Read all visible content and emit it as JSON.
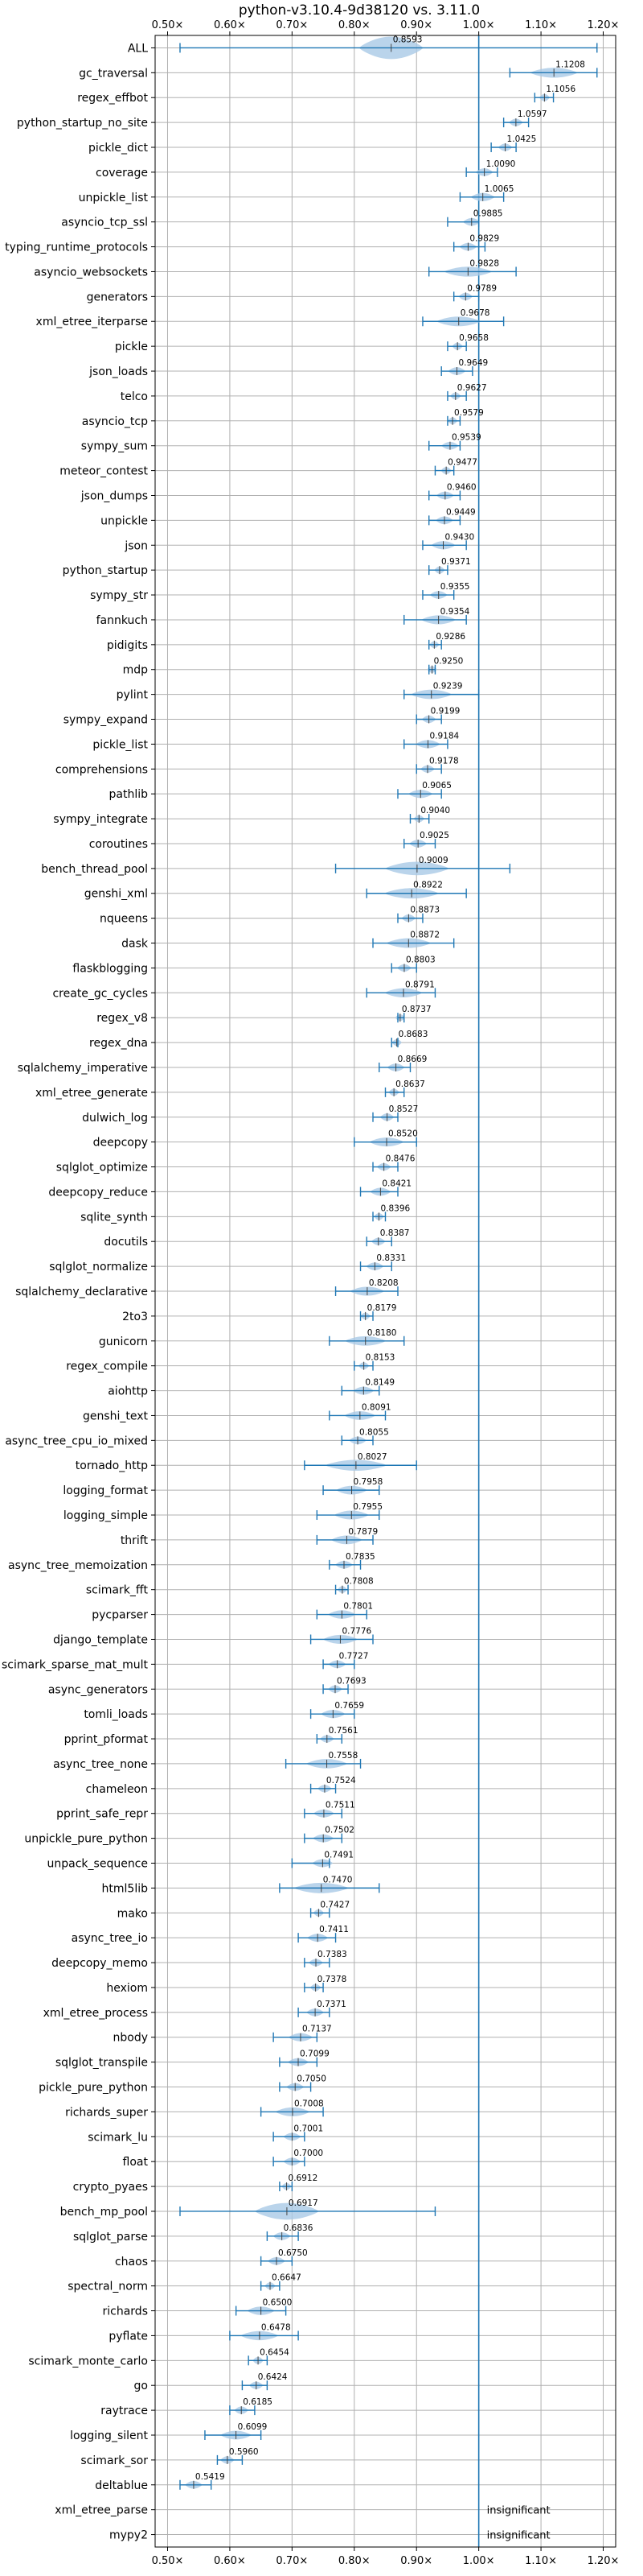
{
  "chart_data": {
    "type": "violin",
    "title": "python-v3.10.4-9d38120 vs. 3.11.0",
    "xlabel": "",
    "ylabel": "",
    "xlim": [
      0.48,
      1.22
    ],
    "x_ticks": [
      "0.50×",
      "0.60×",
      "0.70×",
      "0.80×",
      "0.90×",
      "1.00×",
      "1.10×",
      "1.20×"
    ],
    "x_tick_values": [
      0.5,
      0.6,
      0.7,
      0.8,
      0.9,
      1.0,
      1.1,
      1.2
    ],
    "reference_line": 1.0,
    "grid": true,
    "colors": {
      "violin": "#a9c9e6",
      "line": "#1f77b4",
      "grid": "#b0b0b0"
    },
    "insignificant_label": "insignificant",
    "benchmarks": [
      {
        "name": "ALL",
        "value": 0.8593,
        "label": "0.8593",
        "lo": 0.52,
        "hi": 1.19
      },
      {
        "name": "gc_traversal",
        "value": 1.1208,
        "label": "1.1208",
        "lo": 1.05,
        "hi": 1.19
      },
      {
        "name": "regex_effbot",
        "value": 1.1056,
        "label": "1.1056",
        "lo": 1.09,
        "hi": 1.12
      },
      {
        "name": "python_startup_no_site",
        "value": 1.0597,
        "label": "1.0597",
        "lo": 1.04,
        "hi": 1.08
      },
      {
        "name": "pickle_dict",
        "value": 1.0425,
        "label": "1.0425",
        "lo": 1.02,
        "hi": 1.06
      },
      {
        "name": "coverage",
        "value": 1.009,
        "label": "1.0090",
        "lo": 0.98,
        "hi": 1.03
      },
      {
        "name": "unpickle_list",
        "value": 1.0065,
        "label": "1.0065",
        "lo": 0.97,
        "hi": 1.04
      },
      {
        "name": "asyncio_tcp_ssl",
        "value": 0.9885,
        "label": "0.9885",
        "lo": 0.95,
        "hi": 1.0
      },
      {
        "name": "typing_runtime_protocols",
        "value": 0.9829,
        "label": "0.9829",
        "lo": 0.96,
        "hi": 1.01
      },
      {
        "name": "asyncio_websockets",
        "value": 0.9828,
        "label": "0.9828",
        "lo": 0.92,
        "hi": 1.06
      },
      {
        "name": "generators",
        "value": 0.9789,
        "label": "0.9789",
        "lo": 0.96,
        "hi": 1.0
      },
      {
        "name": "xml_etree_iterparse",
        "value": 0.9678,
        "label": "0.9678",
        "lo": 0.91,
        "hi": 1.04
      },
      {
        "name": "pickle",
        "value": 0.9658,
        "label": "0.9658",
        "lo": 0.95,
        "hi": 0.98
      },
      {
        "name": "json_loads",
        "value": 0.9649,
        "label": "0.9649",
        "lo": 0.94,
        "hi": 0.99
      },
      {
        "name": "telco",
        "value": 0.9627,
        "label": "0.9627",
        "lo": 0.95,
        "hi": 0.98
      },
      {
        "name": "asyncio_tcp",
        "value": 0.9579,
        "label": "0.9579",
        "lo": 0.95,
        "hi": 0.97
      },
      {
        "name": "sympy_sum",
        "value": 0.9539,
        "label": "0.9539",
        "lo": 0.92,
        "hi": 0.97
      },
      {
        "name": "meteor_contest",
        "value": 0.9477,
        "label": "0.9477",
        "lo": 0.93,
        "hi": 0.96
      },
      {
        "name": "json_dumps",
        "value": 0.946,
        "label": "0.9460",
        "lo": 0.92,
        "hi": 0.97
      },
      {
        "name": "unpickle",
        "value": 0.9449,
        "label": "0.9449",
        "lo": 0.92,
        "hi": 0.97
      },
      {
        "name": "json",
        "value": 0.943,
        "label": "0.9430",
        "lo": 0.91,
        "hi": 0.98
      },
      {
        "name": "python_startup",
        "value": 0.9371,
        "label": "0.9371",
        "lo": 0.92,
        "hi": 0.95
      },
      {
        "name": "sympy_str",
        "value": 0.9355,
        "label": "0.9355",
        "lo": 0.91,
        "hi": 0.96
      },
      {
        "name": "fannkuch",
        "value": 0.9354,
        "label": "0.9354",
        "lo": 0.88,
        "hi": 0.98
      },
      {
        "name": "pidigits",
        "value": 0.9286,
        "label": "0.9286",
        "lo": 0.92,
        "hi": 0.94
      },
      {
        "name": "mdp",
        "value": 0.925,
        "label": "0.9250",
        "lo": 0.92,
        "hi": 0.93
      },
      {
        "name": "pylint",
        "value": 0.9239,
        "label": "0.9239",
        "lo": 0.88,
        "hi": 1.0
      },
      {
        "name": "sympy_expand",
        "value": 0.9199,
        "label": "0.9199",
        "lo": 0.9,
        "hi": 0.94
      },
      {
        "name": "pickle_list",
        "value": 0.9184,
        "label": "0.9184",
        "lo": 0.88,
        "hi": 0.95
      },
      {
        "name": "comprehensions",
        "value": 0.9178,
        "label": "0.9178",
        "lo": 0.9,
        "hi": 0.94
      },
      {
        "name": "pathlib",
        "value": 0.9065,
        "label": "0.9065",
        "lo": 0.87,
        "hi": 0.94
      },
      {
        "name": "sympy_integrate",
        "value": 0.904,
        "label": "0.9040",
        "lo": 0.89,
        "hi": 0.92
      },
      {
        "name": "coroutines",
        "value": 0.9025,
        "label": "0.9025",
        "lo": 0.88,
        "hi": 0.93
      },
      {
        "name": "bench_thread_pool",
        "value": 0.9009,
        "label": "0.9009",
        "lo": 0.77,
        "hi": 1.05
      },
      {
        "name": "genshi_xml",
        "value": 0.8922,
        "label": "0.8922",
        "lo": 0.82,
        "hi": 0.98
      },
      {
        "name": "nqueens",
        "value": 0.8873,
        "label": "0.8873",
        "lo": 0.87,
        "hi": 0.91
      },
      {
        "name": "dask",
        "value": 0.8872,
        "label": "0.8872",
        "lo": 0.83,
        "hi": 0.96
      },
      {
        "name": "flaskblogging",
        "value": 0.8803,
        "label": "0.8803",
        "lo": 0.86,
        "hi": 0.9
      },
      {
        "name": "create_gc_cycles",
        "value": 0.8791,
        "label": "0.8791",
        "lo": 0.82,
        "hi": 0.93
      },
      {
        "name": "regex_v8",
        "value": 0.8737,
        "label": "0.8737",
        "lo": 0.87,
        "hi": 0.88
      },
      {
        "name": "regex_dna",
        "value": 0.8683,
        "label": "0.8683",
        "lo": 0.86,
        "hi": 0.87
      },
      {
        "name": "sqlalchemy_imperative",
        "value": 0.8669,
        "label": "0.8669",
        "lo": 0.84,
        "hi": 0.89
      },
      {
        "name": "xml_etree_generate",
        "value": 0.8637,
        "label": "0.8637",
        "lo": 0.85,
        "hi": 0.88
      },
      {
        "name": "dulwich_log",
        "value": 0.8527,
        "label": "0.8527",
        "lo": 0.83,
        "hi": 0.87
      },
      {
        "name": "deepcopy",
        "value": 0.852,
        "label": "0.8520",
        "lo": 0.8,
        "hi": 0.9
      },
      {
        "name": "sqlglot_optimize",
        "value": 0.8476,
        "label": "0.8476",
        "lo": 0.83,
        "hi": 0.87
      },
      {
        "name": "deepcopy_reduce",
        "value": 0.8421,
        "label": "0.8421",
        "lo": 0.81,
        "hi": 0.87
      },
      {
        "name": "sqlite_synth",
        "value": 0.8396,
        "label": "0.8396",
        "lo": 0.83,
        "hi": 0.85
      },
      {
        "name": "docutils",
        "value": 0.8387,
        "label": "0.8387",
        "lo": 0.82,
        "hi": 0.86
      },
      {
        "name": "sqlglot_normalize",
        "value": 0.8331,
        "label": "0.8331",
        "lo": 0.81,
        "hi": 0.86
      },
      {
        "name": "sqlalchemy_declarative",
        "value": 0.8208,
        "label": "0.8208",
        "lo": 0.77,
        "hi": 0.87
      },
      {
        "name": "2to3",
        "value": 0.8179,
        "label": "0.8179",
        "lo": 0.81,
        "hi": 0.83
      },
      {
        "name": "gunicorn",
        "value": 0.818,
        "label": "0.8180",
        "lo": 0.76,
        "hi": 0.88
      },
      {
        "name": "regex_compile",
        "value": 0.8153,
        "label": "0.8153",
        "lo": 0.8,
        "hi": 0.83
      },
      {
        "name": "aiohttp",
        "value": 0.8149,
        "label": "0.8149",
        "lo": 0.78,
        "hi": 0.84
      },
      {
        "name": "genshi_text",
        "value": 0.8091,
        "label": "0.8091",
        "lo": 0.76,
        "hi": 0.85
      },
      {
        "name": "async_tree_cpu_io_mixed",
        "value": 0.8055,
        "label": "0.8055",
        "lo": 0.78,
        "hi": 0.83
      },
      {
        "name": "tornado_http",
        "value": 0.8027,
        "label": "0.8027",
        "lo": 0.72,
        "hi": 0.9
      },
      {
        "name": "logging_format",
        "value": 0.7958,
        "label": "0.7958",
        "lo": 0.75,
        "hi": 0.84
      },
      {
        "name": "logging_simple",
        "value": 0.7955,
        "label": "0.7955",
        "lo": 0.74,
        "hi": 0.84
      },
      {
        "name": "thrift",
        "value": 0.7879,
        "label": "0.7879",
        "lo": 0.74,
        "hi": 0.83
      },
      {
        "name": "async_tree_memoization",
        "value": 0.7835,
        "label": "0.7835",
        "lo": 0.76,
        "hi": 0.81
      },
      {
        "name": "scimark_fft",
        "value": 0.7808,
        "label": "0.7808",
        "lo": 0.77,
        "hi": 0.79
      },
      {
        "name": "pycparser",
        "value": 0.7801,
        "label": "0.7801",
        "lo": 0.74,
        "hi": 0.82
      },
      {
        "name": "django_template",
        "value": 0.7776,
        "label": "0.7776",
        "lo": 0.73,
        "hi": 0.83
      },
      {
        "name": "scimark_sparse_mat_mult",
        "value": 0.7727,
        "label": "0.7727",
        "lo": 0.75,
        "hi": 0.8
      },
      {
        "name": "async_generators",
        "value": 0.7693,
        "label": "0.7693",
        "lo": 0.75,
        "hi": 0.79
      },
      {
        "name": "tomli_loads",
        "value": 0.7659,
        "label": "0.7659",
        "lo": 0.73,
        "hi": 0.8
      },
      {
        "name": "pprint_pformat",
        "value": 0.7561,
        "label": "0.7561",
        "lo": 0.74,
        "hi": 0.78
      },
      {
        "name": "async_tree_none",
        "value": 0.7558,
        "label": "0.7558",
        "lo": 0.69,
        "hi": 0.81
      },
      {
        "name": "chameleon",
        "value": 0.7524,
        "label": "0.7524",
        "lo": 0.73,
        "hi": 0.77
      },
      {
        "name": "pprint_safe_repr",
        "value": 0.7511,
        "label": "0.7511",
        "lo": 0.72,
        "hi": 0.78
      },
      {
        "name": "unpickle_pure_python",
        "value": 0.7502,
        "label": "0.7502",
        "lo": 0.72,
        "hi": 0.78
      },
      {
        "name": "unpack_sequence",
        "value": 0.7491,
        "label": "0.7491",
        "lo": 0.7,
        "hi": 0.76
      },
      {
        "name": "html5lib",
        "value": 0.747,
        "label": "0.7470",
        "lo": 0.68,
        "hi": 0.84
      },
      {
        "name": "mako",
        "value": 0.7427,
        "label": "0.7427",
        "lo": 0.73,
        "hi": 0.76
      },
      {
        "name": "async_tree_io",
        "value": 0.7411,
        "label": "0.7411",
        "lo": 0.71,
        "hi": 0.77
      },
      {
        "name": "deepcopy_memo",
        "value": 0.7383,
        "label": "0.7383",
        "lo": 0.72,
        "hi": 0.76
      },
      {
        "name": "hexiom",
        "value": 0.7378,
        "label": "0.7378",
        "lo": 0.72,
        "hi": 0.75
      },
      {
        "name": "xml_etree_process",
        "value": 0.7371,
        "label": "0.7371",
        "lo": 0.71,
        "hi": 0.76
      },
      {
        "name": "nbody",
        "value": 0.7137,
        "label": "0.7137",
        "lo": 0.67,
        "hi": 0.74
      },
      {
        "name": "sqlglot_transpile",
        "value": 0.7099,
        "label": "0.7099",
        "lo": 0.68,
        "hi": 0.74
      },
      {
        "name": "pickle_pure_python",
        "value": 0.705,
        "label": "0.7050",
        "lo": 0.68,
        "hi": 0.73
      },
      {
        "name": "richards_super",
        "value": 0.7008,
        "label": "0.7008",
        "lo": 0.65,
        "hi": 0.75
      },
      {
        "name": "scimark_lu",
        "value": 0.7001,
        "label": "0.7001",
        "lo": 0.67,
        "hi": 0.72
      },
      {
        "name": "float",
        "value": 0.7,
        "label": "0.7000",
        "lo": 0.67,
        "hi": 0.72
      },
      {
        "name": "crypto_pyaes",
        "value": 0.6912,
        "label": "0.6912",
        "lo": 0.68,
        "hi": 0.7
      },
      {
        "name": "bench_mp_pool",
        "value": 0.6917,
        "label": "0.6917",
        "lo": 0.52,
        "hi": 0.93
      },
      {
        "name": "sqlglot_parse",
        "value": 0.6836,
        "label": "0.6836",
        "lo": 0.66,
        "hi": 0.71
      },
      {
        "name": "chaos",
        "value": 0.675,
        "label": "0.6750",
        "lo": 0.65,
        "hi": 0.7
      },
      {
        "name": "spectral_norm",
        "value": 0.6647,
        "label": "0.6647",
        "lo": 0.65,
        "hi": 0.68
      },
      {
        "name": "richards",
        "value": 0.65,
        "label": "0.6500",
        "lo": 0.61,
        "hi": 0.69
      },
      {
        "name": "pyflate",
        "value": 0.6478,
        "label": "0.6478",
        "lo": 0.6,
        "hi": 0.71
      },
      {
        "name": "scimark_monte_carlo",
        "value": 0.6454,
        "label": "0.6454",
        "lo": 0.63,
        "hi": 0.66
      },
      {
        "name": "go",
        "value": 0.6424,
        "label": "0.6424",
        "lo": 0.62,
        "hi": 0.66
      },
      {
        "name": "raytrace",
        "value": 0.6185,
        "label": "0.6185",
        "lo": 0.6,
        "hi": 0.64
      },
      {
        "name": "logging_silent",
        "value": 0.6099,
        "label": "0.6099",
        "lo": 0.56,
        "hi": 0.65
      },
      {
        "name": "scimark_sor",
        "value": 0.596,
        "label": "0.5960",
        "lo": 0.58,
        "hi": 0.62
      },
      {
        "name": "deltablue",
        "value": 0.5419,
        "label": "0.5419",
        "lo": 0.52,
        "hi": 0.57
      },
      {
        "name": "xml_etree_parse",
        "value": null,
        "label": "",
        "lo": null,
        "hi": null
      },
      {
        "name": "mypy2",
        "value": null,
        "label": "",
        "lo": null,
        "hi": null
      }
    ]
  }
}
